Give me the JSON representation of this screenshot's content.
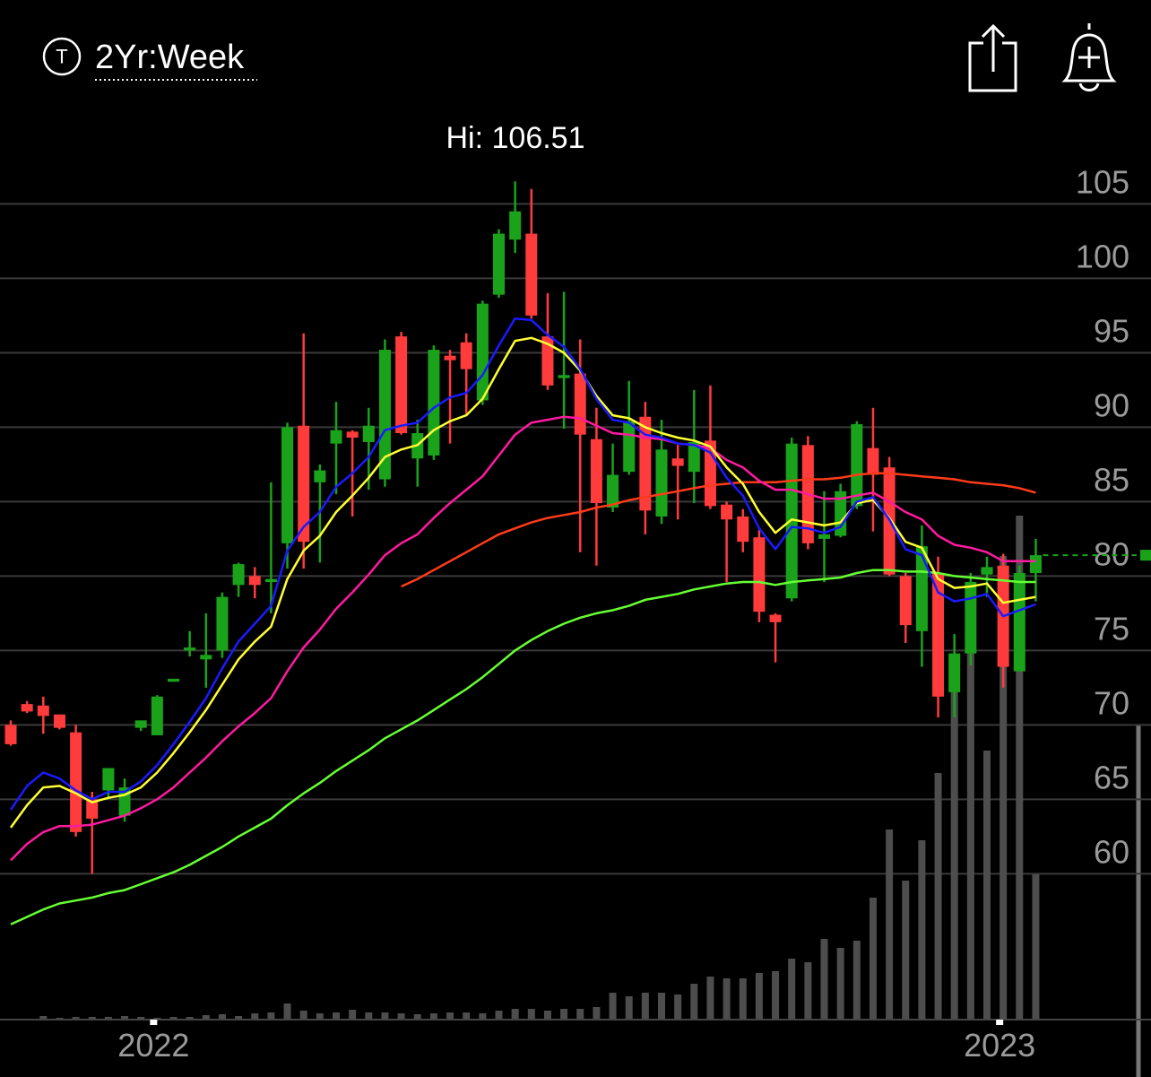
{
  "chart_data": {
    "type": "candlestick",
    "title": "2Yr:Week",
    "icon_letter": "T",
    "annotation": "Hi: 106.51",
    "categories": [
      null,
      null,
      null,
      null,
      null,
      null,
      null,
      null,
      null,
      "2022",
      null,
      null,
      null,
      null,
      null,
      null,
      null,
      null,
      null,
      null,
      null,
      null,
      null,
      null,
      null,
      null,
      null,
      null,
      null,
      null,
      null,
      null,
      null,
      null,
      null,
      null,
      null,
      null,
      null,
      null,
      null,
      null,
      null,
      null,
      null,
      null,
      null,
      null,
      null,
      null,
      null,
      null,
      null,
      null,
      null,
      null,
      null,
      null,
      null,
      null,
      null,
      "2023",
      null,
      null
    ],
    "open": [
      70.0,
      71.4,
      71.3,
      70.7,
      69.5,
      65.0,
      65.6,
      63.9,
      69.8,
      69.3,
      72.9,
      75.0,
      74.4,
      75.0,
      79.4,
      80.0,
      79.6,
      82.2,
      90.1,
      86.3,
      88.9,
      89.7,
      89.0,
      86.5,
      96.1,
      87.9,
      88.1,
      94.8,
      95.7,
      91.8,
      98.9,
      102.6,
      103.0,
      96.1,
      93.3,
      93.6,
      89.2,
      84.6,
      87.0,
      90.7,
      84.0,
      87.9,
      87.0,
      89.1,
      84.8,
      84.0,
      82.6,
      77.4,
      78.5,
      88.8,
      82.5,
      82.7,
      84.7,
      88.6,
      87.3,
      80.0,
      76.3,
      80.2,
      72.2,
      74.8,
      80.1,
      80.7,
      73.6,
      80.2
    ],
    "high": [
      70.3,
      71.6,
      71.9,
      70.7,
      70.0,
      65.5,
      67.1,
      66.4,
      70.3,
      72.0,
      73.1,
      76.3,
      77.5,
      78.9,
      80.9,
      80.6,
      86.3,
      90.3,
      96.3,
      87.5,
      91.7,
      89.8,
      91.3,
      95.9,
      96.4,
      90.5,
      95.5,
      95.2,
      96.3,
      98.5,
      103.3,
      106.51,
      106.0,
      99.0,
      99.1,
      95.9,
      91.3,
      88.9,
      93.1,
      91.7,
      90.5,
      88.8,
      92.5,
      92.8,
      85.0,
      84.5,
      83.1,
      77.5,
      89.3,
      89.4,
      85.7,
      86.2,
      90.4,
      91.3,
      88.0,
      80.2,
      83.4,
      81.3,
      76.1,
      80.2,
      81.3,
      81.5,
      80.7,
      82.5
    ],
    "low": [
      68.6,
      70.8,
      69.4,
      69.7,
      62.5,
      60.0,
      65.0,
      63.5,
      69.6,
      69.3,
      72.9,
      74.6,
      72.5,
      74.5,
      78.6,
      78.5,
      77.5,
      80.5,
      80.5,
      80.9,
      85.5,
      84.0,
      85.8,
      86.0,
      89.5,
      86.0,
      87.8,
      88.9,
      90.9,
      91.5,
      98.7,
      101.7,
      97.3,
      92.5,
      89.9,
      81.6,
      80.7,
      84.3,
      86.8,
      82.8,
      83.5,
      83.8,
      84.9,
      84.5,
      79.6,
      81.6,
      76.9,
      74.2,
      78.3,
      81.8,
      79.6,
      82.6,
      84.5,
      83.0,
      80.0,
      75.5,
      73.9,
      70.5,
      70.5,
      74.0,
      78.6,
      72.5,
      73.6,
      78.3
    ],
    "close": [
      68.7,
      70.9,
      70.6,
      69.8,
      62.8,
      63.7,
      67.1,
      65.8,
      70.3,
      71.9,
      73.1,
      75.2,
      74.7,
      78.6,
      80.8,
      79.4,
      79.8,
      90.0,
      82.3,
      87.1,
      89.8,
      89.3,
      90.1,
      95.2,
      89.6,
      89.6,
      95.2,
      94.5,
      93.9,
      98.3,
      103.0,
      104.5,
      97.5,
      92.8,
      93.5,
      89.5,
      84.9,
      86.8,
      90.4,
      84.4,
      88.5,
      87.4,
      89.0,
      84.7,
      83.8,
      82.3,
      77.6,
      76.9,
      88.9,
      82.2,
      82.8,
      85.7,
      90.2,
      86.8,
      80.1,
      76.7,
      82.0,
      71.9,
      74.8,
      79.6,
      80.6,
      73.9,
      80.2,
      81.4
    ],
    "up_color": "#1aa31a",
    "down_color": "#ff3b3b",
    "volume": {
      "color": "#4d4d4d",
      "vlim": [
        0,
        1137
      ],
      "values": [
        0,
        0,
        4,
        2,
        3,
        3,
        3,
        4,
        3,
        2,
        3,
        3,
        5,
        6,
        4,
        7,
        8,
        18,
        10,
        7,
        8,
        11,
        8,
        8,
        7,
        6,
        7,
        8,
        8,
        7,
        10,
        12,
        12,
        10,
        12,
        12,
        14,
        30,
        26,
        30,
        30,
        28,
        40,
        48,
        46,
        46,
        52,
        54,
        68,
        64,
        90,
        80,
        88,
        136,
        212,
        155,
        200,
        275,
        395,
        445,
        300,
        517,
        562,
        162
      ]
    },
    "lines": [
      {
        "color": "#66ff33",
        "values": [
          56.6,
          57.1,
          57.6,
          58.0,
          58.2,
          58.4,
          58.7,
          58.9,
          59.3,
          59.7,
          60.1,
          60.6,
          61.2,
          61.8,
          62.5,
          63.1,
          63.7,
          64.6,
          65.4,
          66.1,
          66.9,
          67.6,
          68.3,
          69.1,
          69.7,
          70.3,
          71.0,
          71.7,
          72.4,
          73.2,
          74.1,
          75.0,
          75.7,
          76.3,
          76.8,
          77.2,
          77.5,
          77.7,
          78.0,
          78.4,
          78.6,
          78.8,
          79.1,
          79.3,
          79.5,
          79.6,
          79.6,
          79.4,
          79.6,
          79.7,
          79.8,
          79.9,
          80.2,
          80.4,
          80.4,
          80.3,
          80.3,
          80.2,
          80.0,
          79.9,
          79.8,
          79.7,
          79.6,
          79.6
        ]
      },
      {
        "color": "#ff3b1a",
        "values": [
          null,
          null,
          null,
          null,
          null,
          null,
          null,
          null,
          null,
          null,
          null,
          null,
          null,
          null,
          null,
          null,
          null,
          null,
          null,
          null,
          null,
          null,
          null,
          null,
          79.3,
          79.8,
          80.4,
          81.0,
          81.6,
          82.2,
          82.8,
          83.2,
          83.6,
          83.9,
          84.1,
          84.3,
          84.6,
          84.8,
          85.1,
          85.3,
          85.5,
          85.7,
          85.9,
          86.1,
          86.2,
          86.3,
          86.3,
          86.3,
          86.4,
          86.5,
          86.5,
          86.6,
          86.8,
          86.9,
          86.9,
          86.8,
          86.7,
          86.6,
          86.5,
          86.3,
          86.2,
          86.1,
          85.9,
          85.6
        ]
      },
      {
        "color": "#ff1aa0",
        "values": [
          60.9,
          62.0,
          62.8,
          63.2,
          63.2,
          63.3,
          63.6,
          63.9,
          64.4,
          65.0,
          65.8,
          66.8,
          67.8,
          68.9,
          69.9,
          70.8,
          71.8,
          73.6,
          75.2,
          76.4,
          77.8,
          78.9,
          80.1,
          81.4,
          82.2,
          82.8,
          83.9,
          84.9,
          85.8,
          86.7,
          88.1,
          89.5,
          90.3,
          90.5,
          90.7,
          90.6,
          90.1,
          89.6,
          89.5,
          89.3,
          89.2,
          88.9,
          88.8,
          88.6,
          87.8,
          87.3,
          86.4,
          85.8,
          85.8,
          85.5,
          85.2,
          85.2,
          85.4,
          85.6,
          85.0,
          84.3,
          83.8,
          82.7,
          82.1,
          81.9,
          81.6,
          81.0,
          81.0,
          81.0
        ]
      },
      {
        "color": "#ffff33",
        "values": [
          63.1,
          64.6,
          65.8,
          65.9,
          65.4,
          64.8,
          65.1,
          65.3,
          65.8,
          66.8,
          68.1,
          69.5,
          71.0,
          72.7,
          74.4,
          75.6,
          76.6,
          79.8,
          81.7,
          82.7,
          84.3,
          85.4,
          86.6,
          88.0,
          88.5,
          88.8,
          89.8,
          90.4,
          90.8,
          91.9,
          93.9,
          95.8,
          96.0,
          95.6,
          95.0,
          93.8,
          92.1,
          90.8,
          90.6,
          90.0,
          89.6,
          89.3,
          89.1,
          88.7,
          87.3,
          86.2,
          84.3,
          82.9,
          83.8,
          83.6,
          83.4,
          83.6,
          84.9,
          85.1,
          83.9,
          82.3,
          81.9,
          79.8,
          79.2,
          79.3,
          79.5,
          78.2,
          78.4,
          78.6
        ]
      },
      {
        "color": "#1a1aff",
        "values": [
          64.3,
          65.9,
          66.8,
          66.4,
          65.6,
          65.0,
          65.5,
          65.5,
          66.2,
          67.3,
          68.7,
          70.2,
          71.8,
          73.8,
          75.6,
          76.8,
          78.0,
          81.7,
          83.3,
          84.3,
          86.0,
          86.9,
          88.0,
          89.8,
          90.1,
          90.3,
          91.3,
          92.0,
          92.3,
          93.5,
          95.5,
          97.3,
          97.2,
          96.2,
          95.4,
          93.9,
          91.9,
          90.5,
          90.3,
          89.5,
          89.3,
          88.9,
          88.8,
          88.3,
          86.6,
          85.4,
          83.2,
          81.8,
          83.3,
          83.2,
          82.9,
          83.3,
          85.0,
          85.3,
          83.8,
          81.8,
          81.4,
          78.9,
          78.3,
          78.5,
          78.8,
          77.3,
          77.7,
          78.1
        ]
      }
    ],
    "ylim": [
      50.2,
      118.7
    ],
    "yticks": [
      60,
      65,
      70,
      75,
      80,
      85,
      90,
      95,
      100,
      105
    ],
    "grid": true
  }
}
